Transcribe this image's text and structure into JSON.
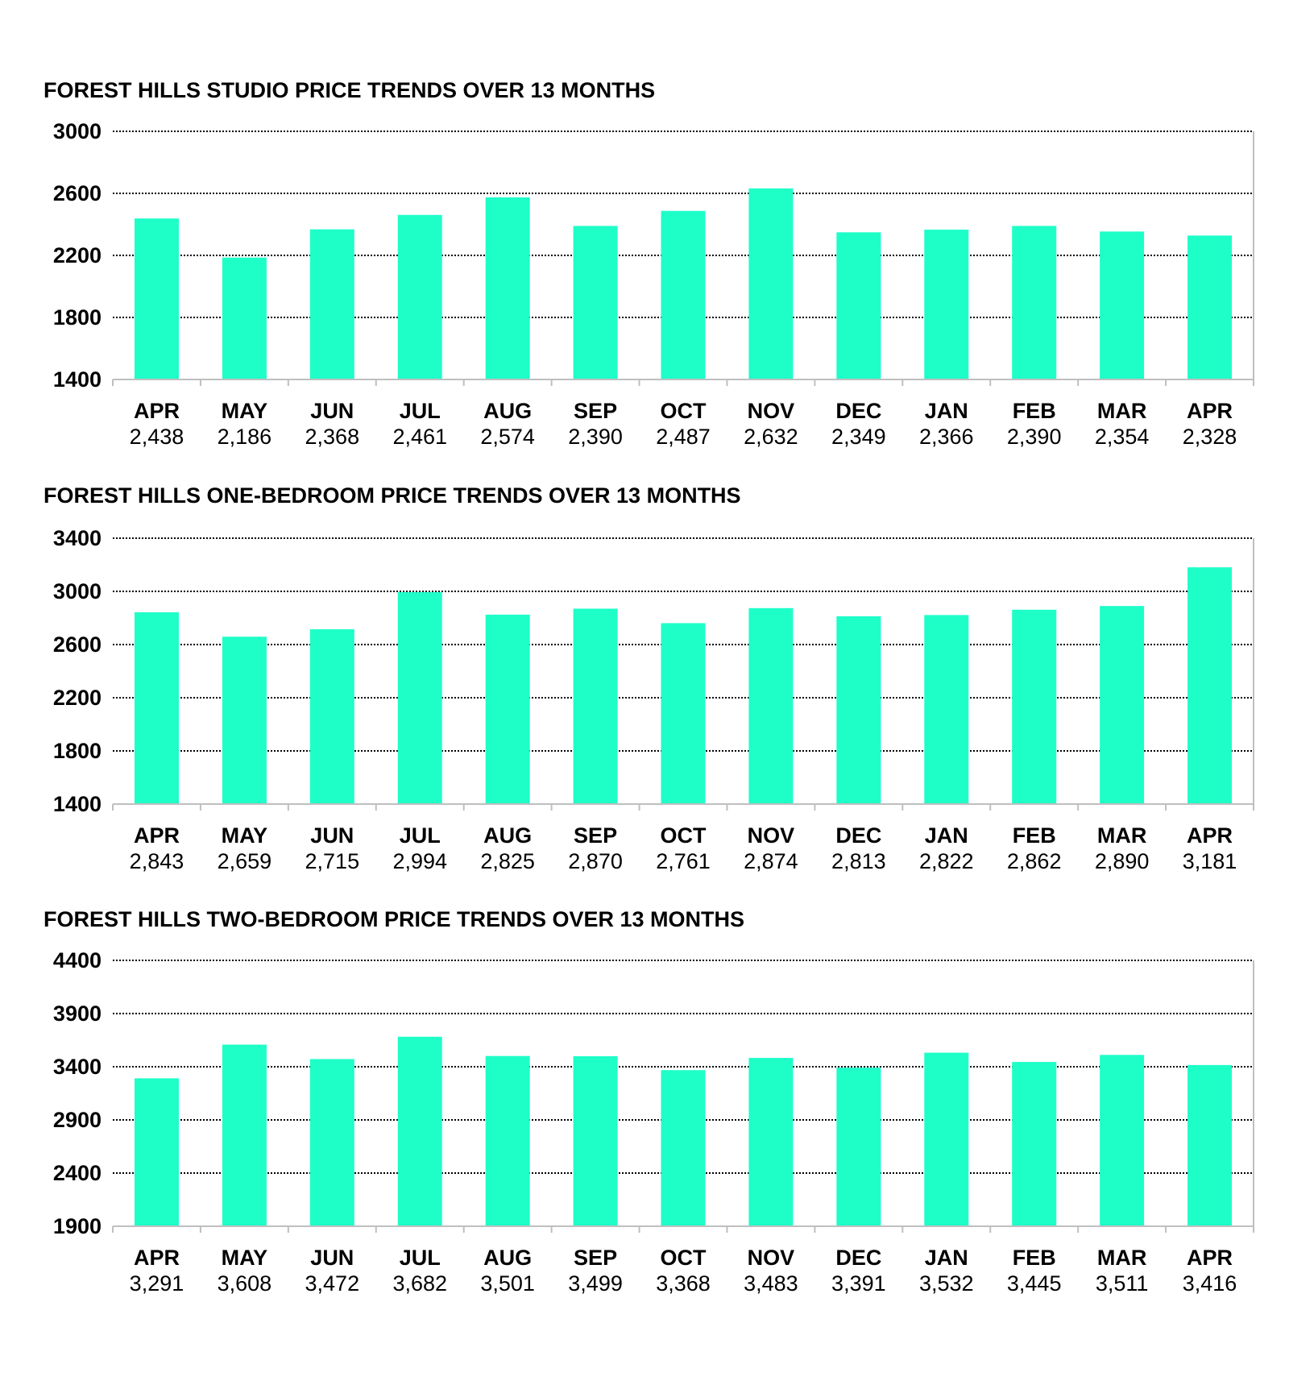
{
  "chart_data": [
    {
      "type": "bar",
      "title": "FOREST HILLS STUDIO PRICE TRENDS OVER 13 MONTHS",
      "categories": [
        "APR",
        "MAY",
        "JUN",
        "JUL",
        "AUG",
        "SEP",
        "OCT",
        "NOV",
        "DEC",
        "JAN",
        "FEB",
        "MAR",
        "APR"
      ],
      "values": [
        2438,
        2186,
        2368,
        2461,
        2574,
        2390,
        2487,
        2632,
        2349,
        2366,
        2390,
        2354,
        2328
      ],
      "value_labels": [
        "2,438",
        "2,186",
        "2,368",
        "2,461",
        "2,574",
        "2,390",
        "2,487",
        "2,632",
        "2,349",
        "2,366",
        "2,390",
        "2,354",
        "2,328"
      ],
      "yticks": [
        1400,
        1800,
        2200,
        2600,
        3000
      ],
      "ytick_labels": [
        "1400",
        "1800",
        "2200",
        "2600",
        "3000"
      ],
      "ylim": [
        1400,
        3000
      ],
      "grid": true,
      "bar_color": "#1effc8"
    },
    {
      "type": "bar",
      "title": "FOREST HILLS ONE-BEDROOM PRICE TRENDS OVER 13 MONTHS",
      "categories": [
        "APR",
        "MAY",
        "JUN",
        "JUL",
        "AUG",
        "SEP",
        "OCT",
        "NOV",
        "DEC",
        "JAN",
        "FEB",
        "MAR",
        "APR"
      ],
      "values": [
        2843,
        2659,
        2715,
        2994,
        2825,
        2870,
        2761,
        2874,
        2813,
        2822,
        2862,
        2890,
        3181
      ],
      "value_labels": [
        "2,843",
        "2,659",
        "2,715",
        "2,994",
        "2,825",
        "2,870",
        "2,761",
        "2,874",
        "2,813",
        "2,822",
        "2,862",
        "2,890",
        "3,181"
      ],
      "yticks": [
        1400,
        1800,
        2200,
        2600,
        3000,
        3400
      ],
      "ytick_labels": [
        "1400",
        "1800",
        "2200",
        "2600",
        "3000",
        "3400"
      ],
      "ylim": [
        1400,
        3400
      ],
      "grid": true,
      "bar_color": "#1effc8"
    },
    {
      "type": "bar",
      "title": "FOREST HILLS TWO-BEDROOM PRICE TRENDS OVER 13 MONTHS",
      "categories": [
        "APR",
        "MAY",
        "JUN",
        "JUL",
        "AUG",
        "SEP",
        "OCT",
        "NOV",
        "DEC",
        "JAN",
        "FEB",
        "MAR",
        "APR"
      ],
      "values": [
        3291,
        3608,
        3472,
        3682,
        3501,
        3499,
        3368,
        3483,
        3391,
        3532,
        3445,
        3511,
        3416
      ],
      "value_labels": [
        "3,291",
        "3,608",
        "3,472",
        "3,682",
        "3,501",
        "3,499",
        "3,368",
        "3,483",
        "3,391",
        "3,532",
        "3,445",
        "3,511",
        "3,416"
      ],
      "yticks": [
        1900,
        2400,
        2900,
        3400,
        3900,
        4400
      ],
      "ytick_labels": [
        "1900",
        "2400",
        "2900",
        "3400",
        "3900",
        "4400"
      ],
      "ylim": [
        1900,
        4400
      ],
      "grid": true,
      "bar_color": "#1effc8"
    }
  ]
}
